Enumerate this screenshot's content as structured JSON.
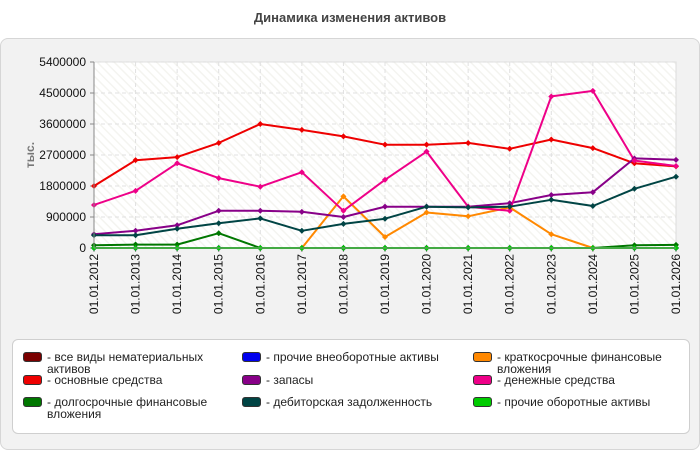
{
  "chart_data": {
    "type": "line",
    "title": "Динамика изменения активов",
    "ylabel": "тыс.",
    "xlabel": "",
    "ylim": [
      0,
      5400000
    ],
    "yticks": [
      "0",
      "900000",
      "1800000",
      "2700000",
      "3600000",
      "4500000",
      "5400000"
    ],
    "x": [
      "01.01.2012",
      "01.01.2013",
      "01.01.2014",
      "01.01.2015",
      "01.01.2016",
      "01.01.2017",
      "01.01.2018",
      "01.01.2019",
      "01.01.2020",
      "01.01.2021",
      "01.01.2022",
      "01.01.2023",
      "01.01.2024",
      "01.01.2025",
      "01.01.2026"
    ],
    "legend_position": "bottom",
    "grid": true,
    "series": [
      {
        "name": "- все виды нематериальных активов",
        "color": "#7a0000",
        "values": [
          0,
          0,
          0,
          0,
          0,
          0,
          0,
          0,
          0,
          0,
          0,
          0,
          0,
          0,
          0
        ]
      },
      {
        "name": "- прочие внеоборотные активы",
        "color": "#0000ee",
        "values": [
          0,
          0,
          0,
          0,
          0,
          0,
          0,
          0,
          0,
          0,
          0,
          0,
          0,
          0,
          0
        ]
      },
      {
        "name": "- краткосрочные финансовые вложения",
        "color": "#ff8800",
        "values": [
          null,
          null,
          null,
          null,
          null,
          0,
          1500000,
          320000,
          1030000,
          920000,
          1180000,
          400000,
          0,
          null,
          null
        ]
      },
      {
        "name": "- основные средства",
        "color": "#ee0000",
        "values": [
          1800000,
          2550000,
          2640000,
          3050000,
          3600000,
          3430000,
          3240000,
          3000000,
          3000000,
          3050000,
          2880000,
          3150000,
          2900000,
          2460000,
          2370000
        ]
      },
      {
        "name": "- запасы",
        "color": "#880088",
        "values": [
          400000,
          500000,
          660000,
          1080000,
          1080000,
          1050000,
          900000,
          1200000,
          1200000,
          1200000,
          1300000,
          1540000,
          1620000,
          2600000,
          2560000
        ]
      },
      {
        "name": "- денежные средства",
        "color": "#ee0088",
        "values": [
          1250000,
          1660000,
          2460000,
          2030000,
          1780000,
          2200000,
          1080000,
          1980000,
          2800000,
          1200000,
          1080000,
          4400000,
          4560000,
          2540000,
          2380000
        ]
      },
      {
        "name": "- долгосрочные финансовые вложения",
        "color": "#007700",
        "values": [
          80000,
          100000,
          100000,
          430000,
          0,
          0,
          0,
          0,
          0,
          0,
          0,
          0,
          0,
          80000,
          90000
        ]
      },
      {
        "name": "- дебиторская задолженность",
        "color": "#004444",
        "values": [
          370000,
          370000,
          560000,
          720000,
          860000,
          500000,
          700000,
          850000,
          1200000,
          1180000,
          1200000,
          1400000,
          1220000,
          1720000,
          2070000
        ]
      },
      {
        "name": "- прочие оборотные активы",
        "color": "#00cc00",
        "values": [
          0,
          0,
          0,
          0,
          0,
          0,
          0,
          0,
          0,
          0,
          0,
          0,
          0,
          0,
          0
        ]
      }
    ],
    "legend_labels": [
      [
        "- все виды нематериальных",
        "активов"
      ],
      [
        "- прочие внеоборотные активы"
      ],
      [
        "- краткосрочные финансовые",
        "вложения"
      ],
      [
        "- основные средства"
      ],
      [
        "- запасы"
      ],
      [
        "- денежные средства"
      ],
      [
        "- долгосрочные финансовые",
        "вложения"
      ],
      [
        "- дебиторская задолженность"
      ],
      [
        "- прочие оборотные активы"
      ]
    ]
  }
}
